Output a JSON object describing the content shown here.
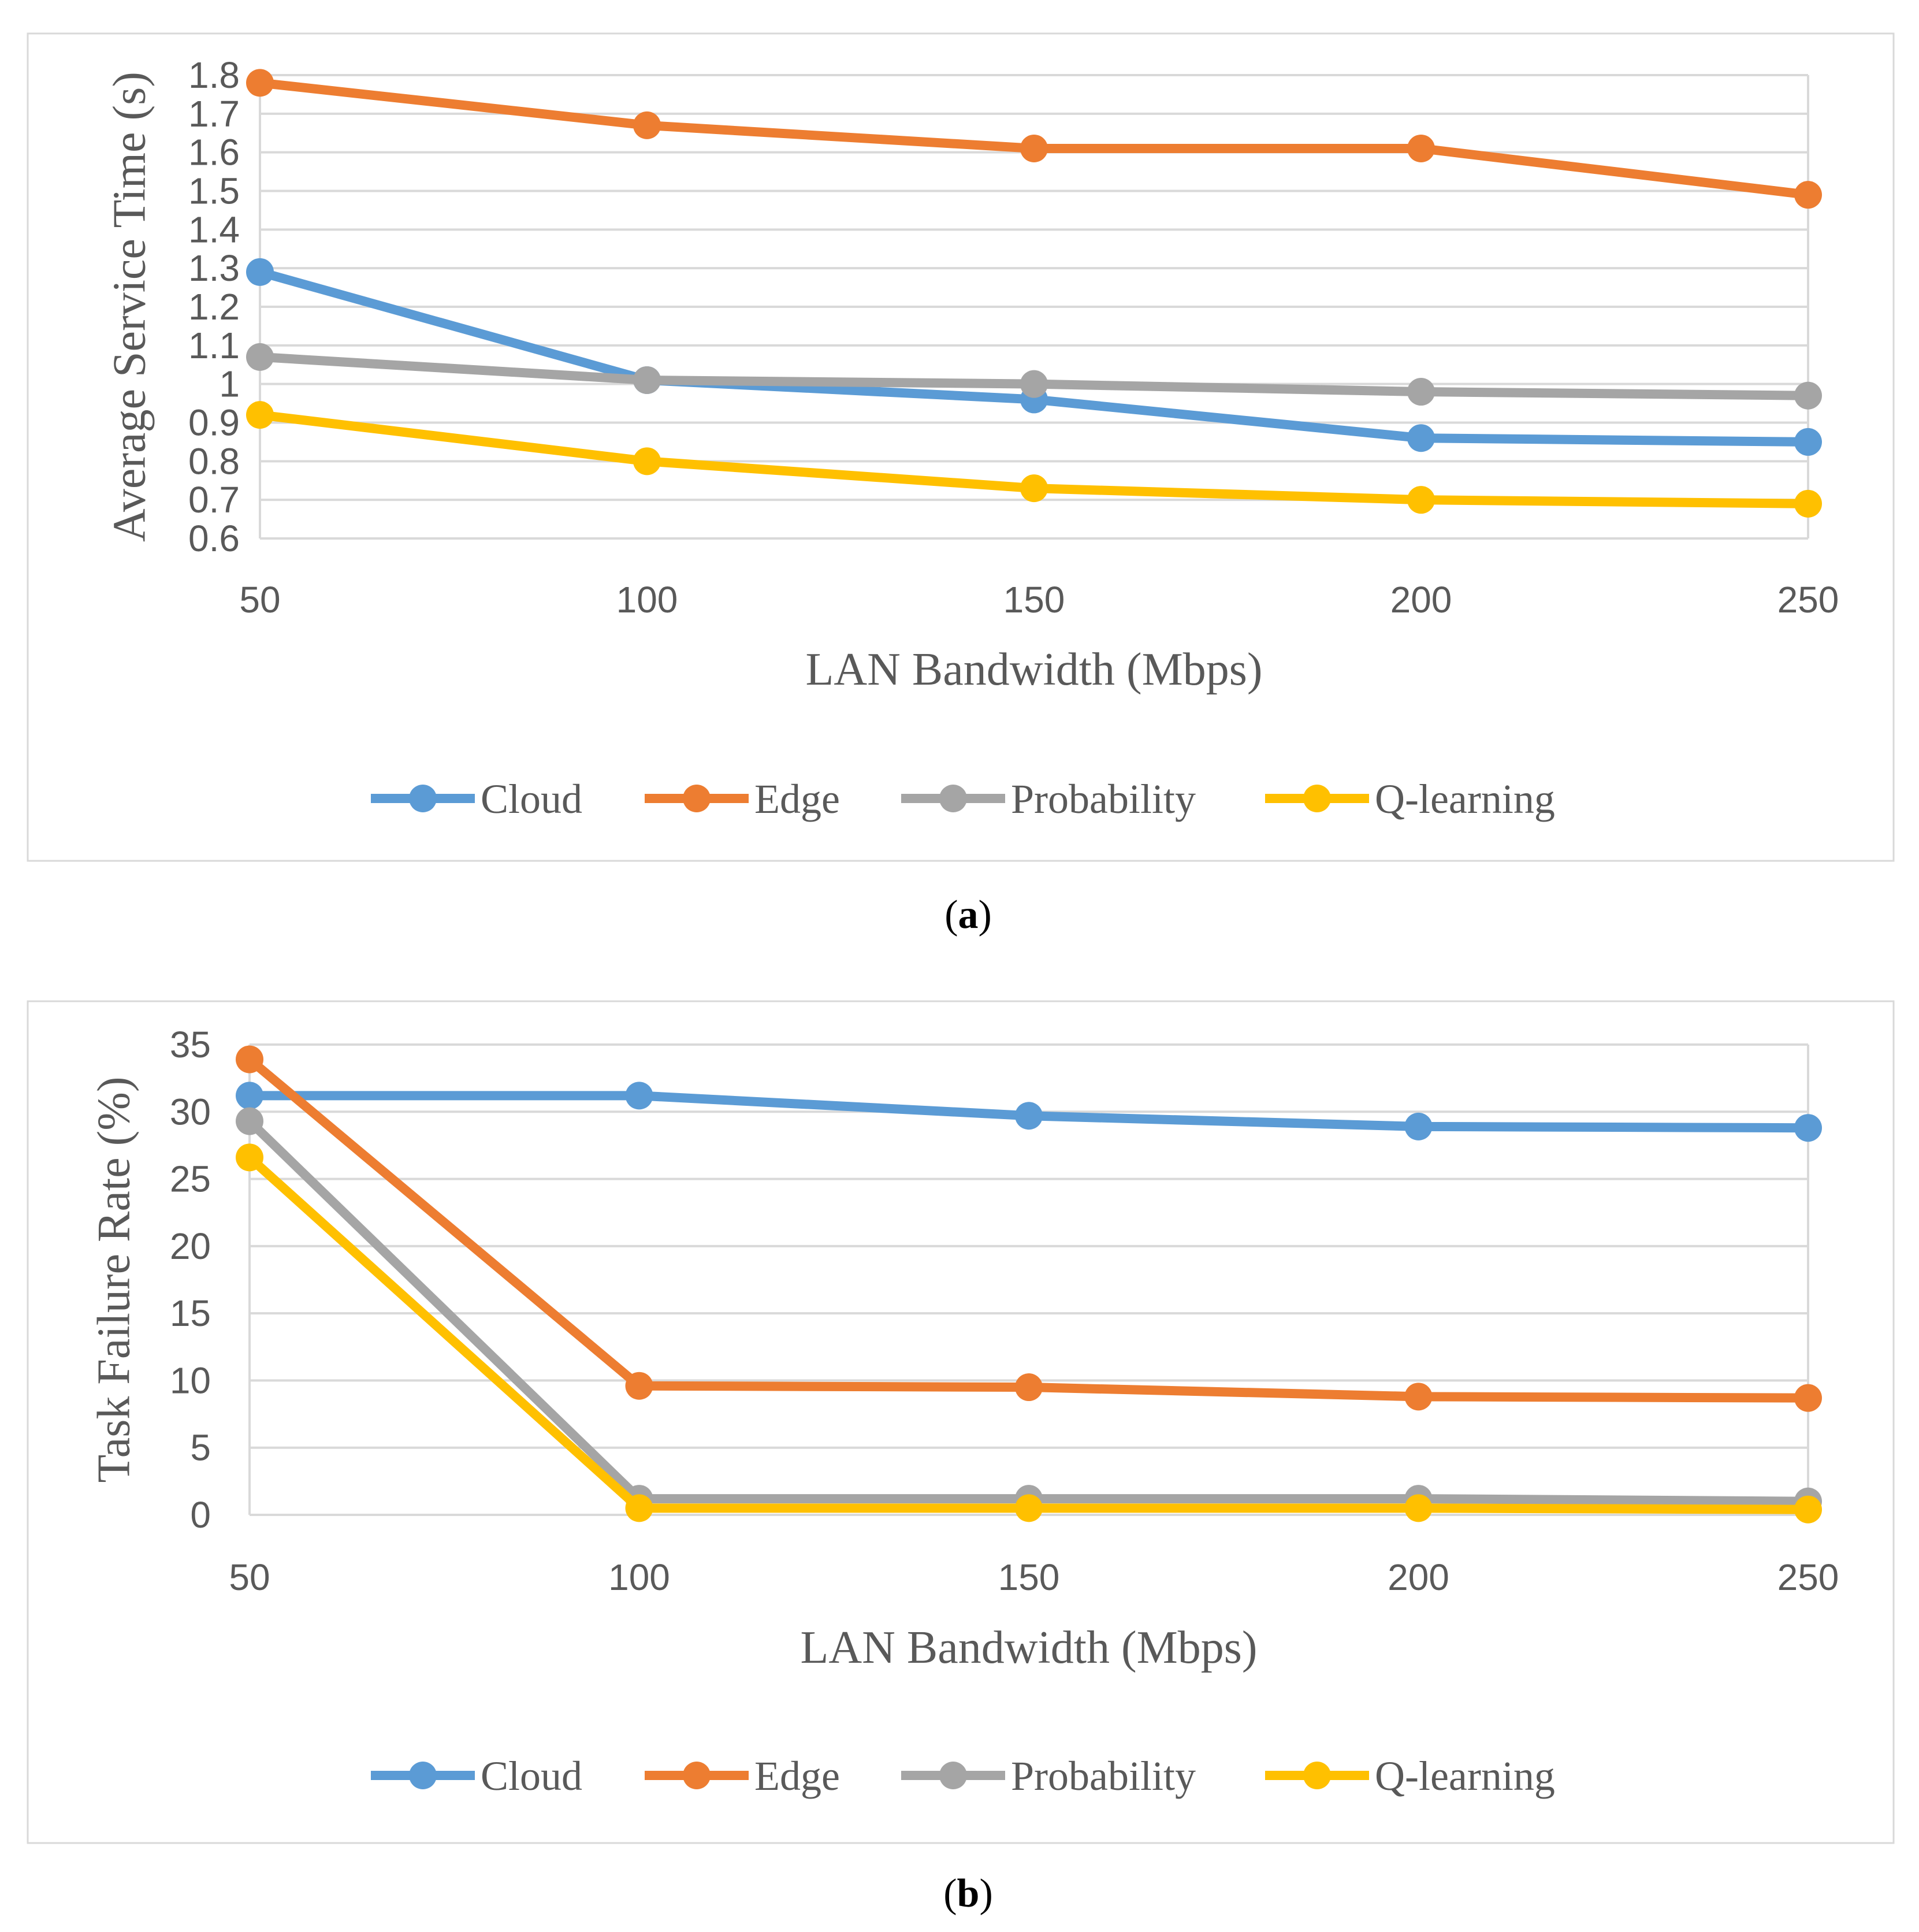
{
  "chart_data": [
    {
      "type": "line",
      "id": "a",
      "caption_open": "(",
      "caption_letter": "a",
      "caption_close": ")",
      "xlabel": "LAN Bandwidth (Mbps)",
      "ylabel": "Average Service Time (s)",
      "x": [
        50,
        100,
        150,
        200,
        250
      ],
      "x_tick_labels": [
        "50",
        "100",
        "150",
        "200",
        "250"
      ],
      "ylim": [
        0.6,
        1.8
      ],
      "y_tick_values": [
        0.6,
        0.7,
        0.8,
        0.9,
        1.0,
        1.1,
        1.2,
        1.3,
        1.4,
        1.5,
        1.6,
        1.7,
        1.8
      ],
      "y_tick_labels": [
        "0.6",
        "0.7",
        "0.8",
        "0.9",
        "1",
        "1.1",
        "1.2",
        "1.3",
        "1.4",
        "1.5",
        "1.6",
        "1.7",
        "1.8"
      ],
      "grid": true,
      "legend_position": "bottom",
      "series": [
        {
          "name": "Cloud",
          "color": "#5B9BD5",
          "values": [
            1.29,
            1.01,
            0.96,
            0.86,
            0.85
          ]
        },
        {
          "name": "Edge",
          "color": "#ED7D31",
          "values": [
            1.78,
            1.67,
            1.61,
            1.61,
            1.49
          ]
        },
        {
          "name": "Probability",
          "color": "#A5A5A5",
          "values": [
            1.07,
            1.01,
            1.0,
            0.98,
            0.97
          ]
        },
        {
          "name": "Q-learning",
          "color": "#FFC000",
          "values": [
            0.92,
            0.8,
            0.73,
            0.7,
            0.69
          ]
        }
      ]
    },
    {
      "type": "line",
      "id": "b",
      "caption_open": "(",
      "caption_letter": "b",
      "caption_close": ")",
      "xlabel": "LAN Bandwidth (Mbps)",
      "ylabel": "Task Failure Rate (%)",
      "x": [
        50,
        100,
        150,
        200,
        250
      ],
      "x_tick_labels": [
        "50",
        "100",
        "150",
        "200",
        "250"
      ],
      "ylim": [
        0,
        35
      ],
      "y_tick_values": [
        0,
        5,
        10,
        15,
        20,
        25,
        30,
        35
      ],
      "y_tick_labels": [
        "0",
        "5",
        "10",
        "15",
        "20",
        "25",
        "30",
        "35"
      ],
      "grid": true,
      "legend_position": "bottom",
      "series": [
        {
          "name": "Cloud",
          "color": "#5B9BD5",
          "values": [
            31.2,
            31.2,
            29.7,
            28.9,
            28.8
          ]
        },
        {
          "name": "Edge",
          "color": "#ED7D31",
          "values": [
            33.9,
            9.6,
            9.5,
            8.8,
            8.7
          ]
        },
        {
          "name": "Probability",
          "color": "#A5A5A5",
          "values": [
            29.3,
            1.2,
            1.2,
            1.2,
            1.0
          ]
        },
        {
          "name": "Q-learning",
          "color": "#FFC000",
          "values": [
            26.6,
            0.5,
            0.5,
            0.5,
            0.4
          ]
        }
      ]
    }
  ]
}
